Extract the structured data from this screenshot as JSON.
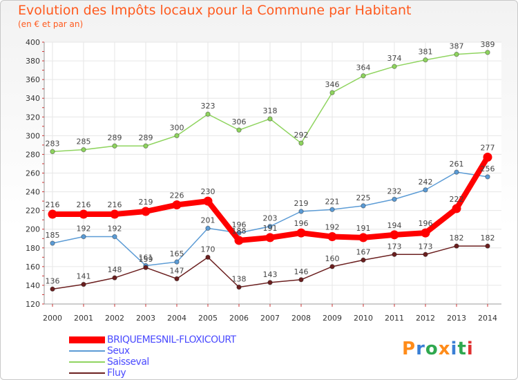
{
  "header": {
    "title": "Evolution des Impôts locaux pour la Commune par Habitant",
    "subtitle": "(en € et par an)"
  },
  "logo": {
    "text": "Proxiti",
    "colors": [
      "#ff8c1a",
      "#3a7fd5",
      "#2fa84f",
      "#ff8c1a",
      "#3a7fd5",
      "#2fa84f",
      "#e03030"
    ]
  },
  "chart_data": {
    "type": "line",
    "x": [
      2000,
      2001,
      2002,
      2003,
      2004,
      2005,
      2006,
      2007,
      2008,
      2009,
      2010,
      2011,
      2012,
      2013,
      2014
    ],
    "ylim": [
      120,
      400
    ],
    "yticks": [
      120,
      140,
      160,
      180,
      200,
      220,
      240,
      260,
      280,
      300,
      320,
      340,
      360,
      380,
      400
    ],
    "grid": true,
    "legend_position": "bottom-left",
    "series": [
      {
        "name": "BRIQUEMESNIL-FLOXICOURT",
        "color": "#ff0000",
        "thick": true,
        "values": [
          216,
          216,
          216,
          219,
          226,
          230,
          188,
          191,
          196,
          192,
          191,
          194,
          196,
          222,
          277
        ]
      },
      {
        "name": "Seux",
        "color": "#5b9bd5",
        "thick": false,
        "values": [
          185,
          192,
          192,
          161,
          165,
          201,
          196,
          203,
          219,
          221,
          225,
          232,
          242,
          261,
          256
        ]
      },
      {
        "name": "Saisseval",
        "color": "#8fd45f",
        "thick": false,
        "values": [
          283,
          285,
          289,
          289,
          300,
          323,
          306,
          318,
          292,
          346,
          364,
          374,
          381,
          387,
          389
        ]
      },
      {
        "name": "Fluy",
        "color": "#6b1f1f",
        "thick": false,
        "values": [
          136,
          141,
          148,
          159,
          147,
          170,
          138,
          143,
          146,
          160,
          167,
          173,
          173,
          182,
          182
        ]
      }
    ]
  }
}
